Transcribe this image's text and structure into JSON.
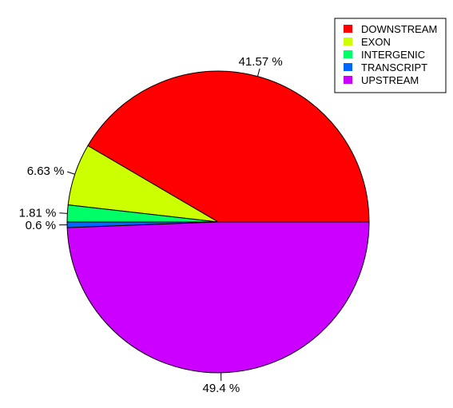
{
  "chart_data": {
    "type": "pie",
    "title": "",
    "legend_position": "top-right",
    "slices": [
      {
        "name": "DOWNSTREAM",
        "value": 41.57,
        "label": "41.57 %",
        "color": "#FF0000"
      },
      {
        "name": "EXON",
        "value": 6.63,
        "label": "6.63 %",
        "color": "#CCFF00"
      },
      {
        "name": "INTERGENIC",
        "value": 1.81,
        "label": "1.81 %",
        "color": "#00FF66"
      },
      {
        "name": "TRANSCRIPT",
        "value": 0.6,
        "label": "0.6 %",
        "color": "#0066FF"
      },
      {
        "name": "UPSTREAM",
        "value": 49.4,
        "label": "49.4 %",
        "color": "#CC00FF"
      }
    ]
  }
}
